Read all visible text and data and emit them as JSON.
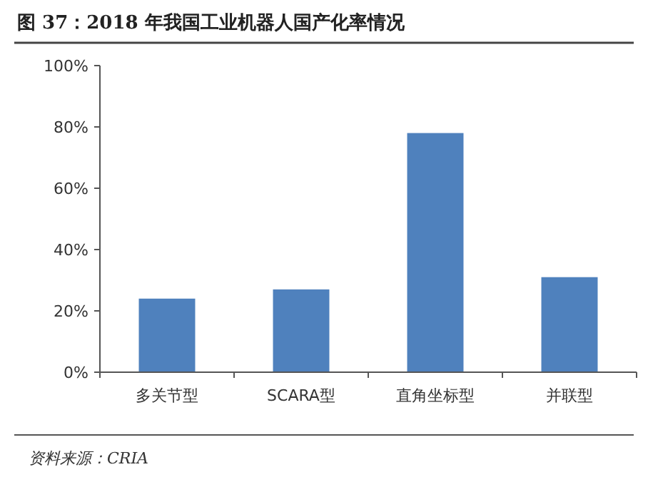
{
  "chart_data": {
    "type": "bar",
    "title": "图 37：2018 年我国工业机器人国产化率情况",
    "categories": [
      "多关节型",
      "SCARA型",
      "直角坐标型",
      "并联型"
    ],
    "values": [
      24,
      27,
      78,
      31
    ],
    "color": "#4f81bd",
    "ylim": [
      0,
      100
    ],
    "yticks": [
      {
        "value": 0,
        "label": "0%"
      },
      {
        "value": 20,
        "label": "20%"
      },
      {
        "value": 40,
        "label": "40%"
      },
      {
        "value": 60,
        "label": "60%"
      },
      {
        "value": 80,
        "label": "80%"
      },
      {
        "value": 100,
        "label": "100%"
      }
    ],
    "grid": false,
    "annotations": [
      "资料来源：CRIA"
    ]
  }
}
